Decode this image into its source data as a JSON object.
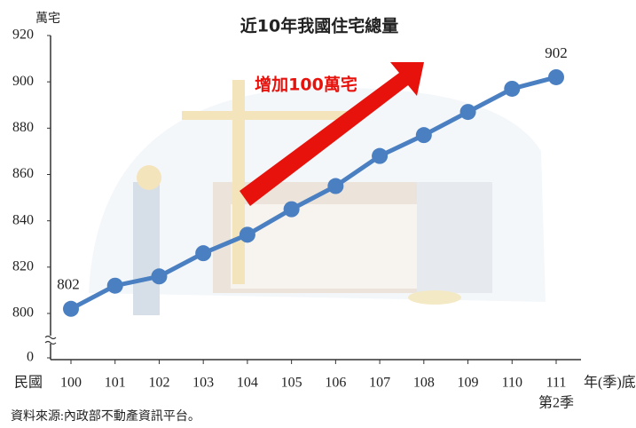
{
  "chart_data": {
    "type": "line",
    "title": "近10年我國住宅總量",
    "y_label": "萬宅",
    "x_prefix": "民國",
    "x_label": "年(季)底",
    "annotation": "增加100萬宅",
    "source": "資料來源:內政部不動產資訊平台。",
    "categories": [
      "100",
      "101",
      "102",
      "103",
      "104",
      "105",
      "106",
      "107",
      "108",
      "109",
      "110",
      "111"
    ],
    "last_category_note": "第2季",
    "series": [
      {
        "name": "住宅總量",
        "color": "#4a7fc1",
        "values": [
          802,
          812,
          816,
          826,
          834,
          845,
          855,
          868,
          877,
          887,
          897,
          902
        ]
      }
    ],
    "label_first_last": true,
    "ylim": [
      800,
      920
    ],
    "yticks": [
      0,
      800,
      820,
      840,
      860,
      880,
      900,
      920
    ],
    "axis_break": true,
    "grid": false
  }
}
